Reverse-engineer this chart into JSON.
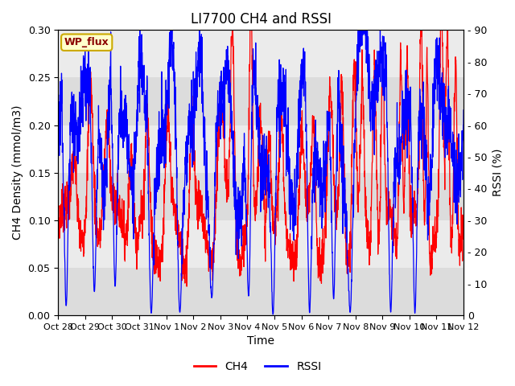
{
  "title": "LI7700 CH4 and RSSI",
  "xlabel": "Time",
  "ylabel_left": "CH4 Density (mmol/m3)",
  "ylabel_right": "RSSI (%)",
  "ylim_left": [
    0.0,
    0.3
  ],
  "ylim_right": [
    0,
    90
  ],
  "yticks_left": [
    0.0,
    0.05,
    0.1,
    0.15,
    0.2,
    0.25,
    0.3
  ],
  "yticks_right": [
    0,
    10,
    20,
    30,
    40,
    50,
    60,
    70,
    80,
    90
  ],
  "xtick_labels": [
    "Oct 28",
    "Oct 29",
    "Oct 30",
    "Oct 31",
    "Nov 1",
    "Nov 2",
    "Nov 3",
    "Nov 4",
    "Nov 5",
    "Nov 6",
    "Nov 7",
    "Nov 8",
    "Nov 9",
    "Nov 10",
    "Nov 11",
    "Nov 12"
  ],
  "legend_ch4": "CH4",
  "legend_rssi": "RSSI",
  "ch4_color": "#FF0000",
  "rssi_color": "#0000FF",
  "annotation_text": "WP_flux",
  "plot_bg_color": "#EBEBEB",
  "band_light": "#EBEBEB",
  "band_dark": "#DCDCDC",
  "title_fontsize": 12,
  "axis_fontsize": 10,
  "tick_fontsize": 9,
  "line_width": 0.9
}
